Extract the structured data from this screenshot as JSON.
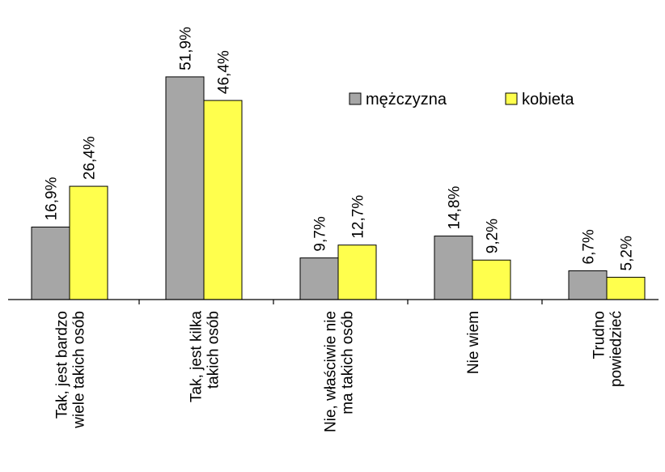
{
  "chart_data": {
    "type": "bar",
    "categories": [
      [
        "Tak, jest bardzo",
        "wiele takich osób"
      ],
      [
        "Tak, jest kilka",
        "takich osób"
      ],
      [
        "Nie, właściwie nie",
        "ma takich osób"
      ],
      [
        "Nie wiem"
      ],
      [
        "Trudno",
        "powiedzieć"
      ]
    ],
    "series": [
      {
        "name": "mężczyzna",
        "color": "#a6a6a6",
        "values": [
          16.9,
          51.9,
          9.7,
          14.8,
          6.7
        ],
        "labels": [
          "16,9%",
          "51,9%",
          "9,7%",
          "14,8%",
          "6,7%"
        ]
      },
      {
        "name": "kobieta",
        "color": "#ffff4d",
        "values": [
          26.4,
          46.4,
          12.7,
          9.2,
          5.2
        ],
        "labels": [
          "26,4%",
          "46,4%",
          "12,7%",
          "9,2%",
          "5,2%"
        ]
      }
    ],
    "ylim": [
      0,
      53
    ],
    "grid": false,
    "legend": "top-right",
    "title": "",
    "xlabel": "",
    "ylabel": ""
  }
}
